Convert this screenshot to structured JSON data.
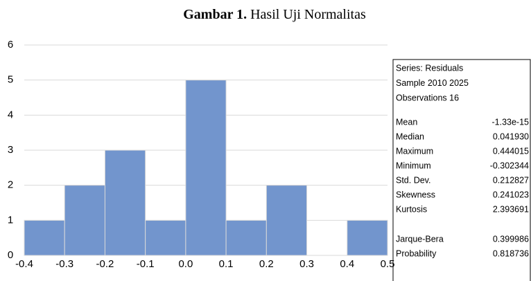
{
  "chart_data": {
    "type": "histogram",
    "title_bold": "Gambar 1.",
    "title": "Hasil Uji Normalitas",
    "bins": [
      -0.4,
      -0.3,
      -0.2,
      -0.1,
      0,
      0.1,
      0.2,
      0.3,
      0.4,
      0.5
    ],
    "values": [
      1,
      2,
      3,
      1,
      5,
      1,
      2,
      0,
      1
    ],
    "color": "#7295cd",
    "xlim": [
      -0.4,
      0.5
    ],
    "xticks": [
      -0.4,
      -0.3,
      -0.2,
      -0.1,
      {
        "value": 0,
        "label": "0.0"
      },
      0.1,
      0.2,
      0.3,
      0.4,
      0.5
    ],
    "ylim": [
      0,
      6
    ],
    "yticks": [
      0,
      1,
      2,
      3,
      4,
      5,
      6
    ],
    "grid": true,
    "stats_box": {
      "header": [
        "Series: Residuals",
        "Sample 2010 2025",
        "Observations 16"
      ],
      "rows": [
        [
          "Mean",
          "-1.33e-15"
        ],
        [
          "Median",
          "0.041930"
        ],
        [
          "Maximum",
          "0.444015"
        ],
        [
          "Minimum",
          "-0.302344"
        ],
        [
          "Std. Dev.",
          "0.212827"
        ],
        [
          "Skewness",
          "0.241023"
        ],
        [
          "Kurtosis",
          "2.393691"
        ]
      ],
      "test_rows": [
        [
          "Jarque-Bera",
          "0.399986"
        ],
        [
          "Probability",
          "0.818736"
        ]
      ]
    }
  }
}
